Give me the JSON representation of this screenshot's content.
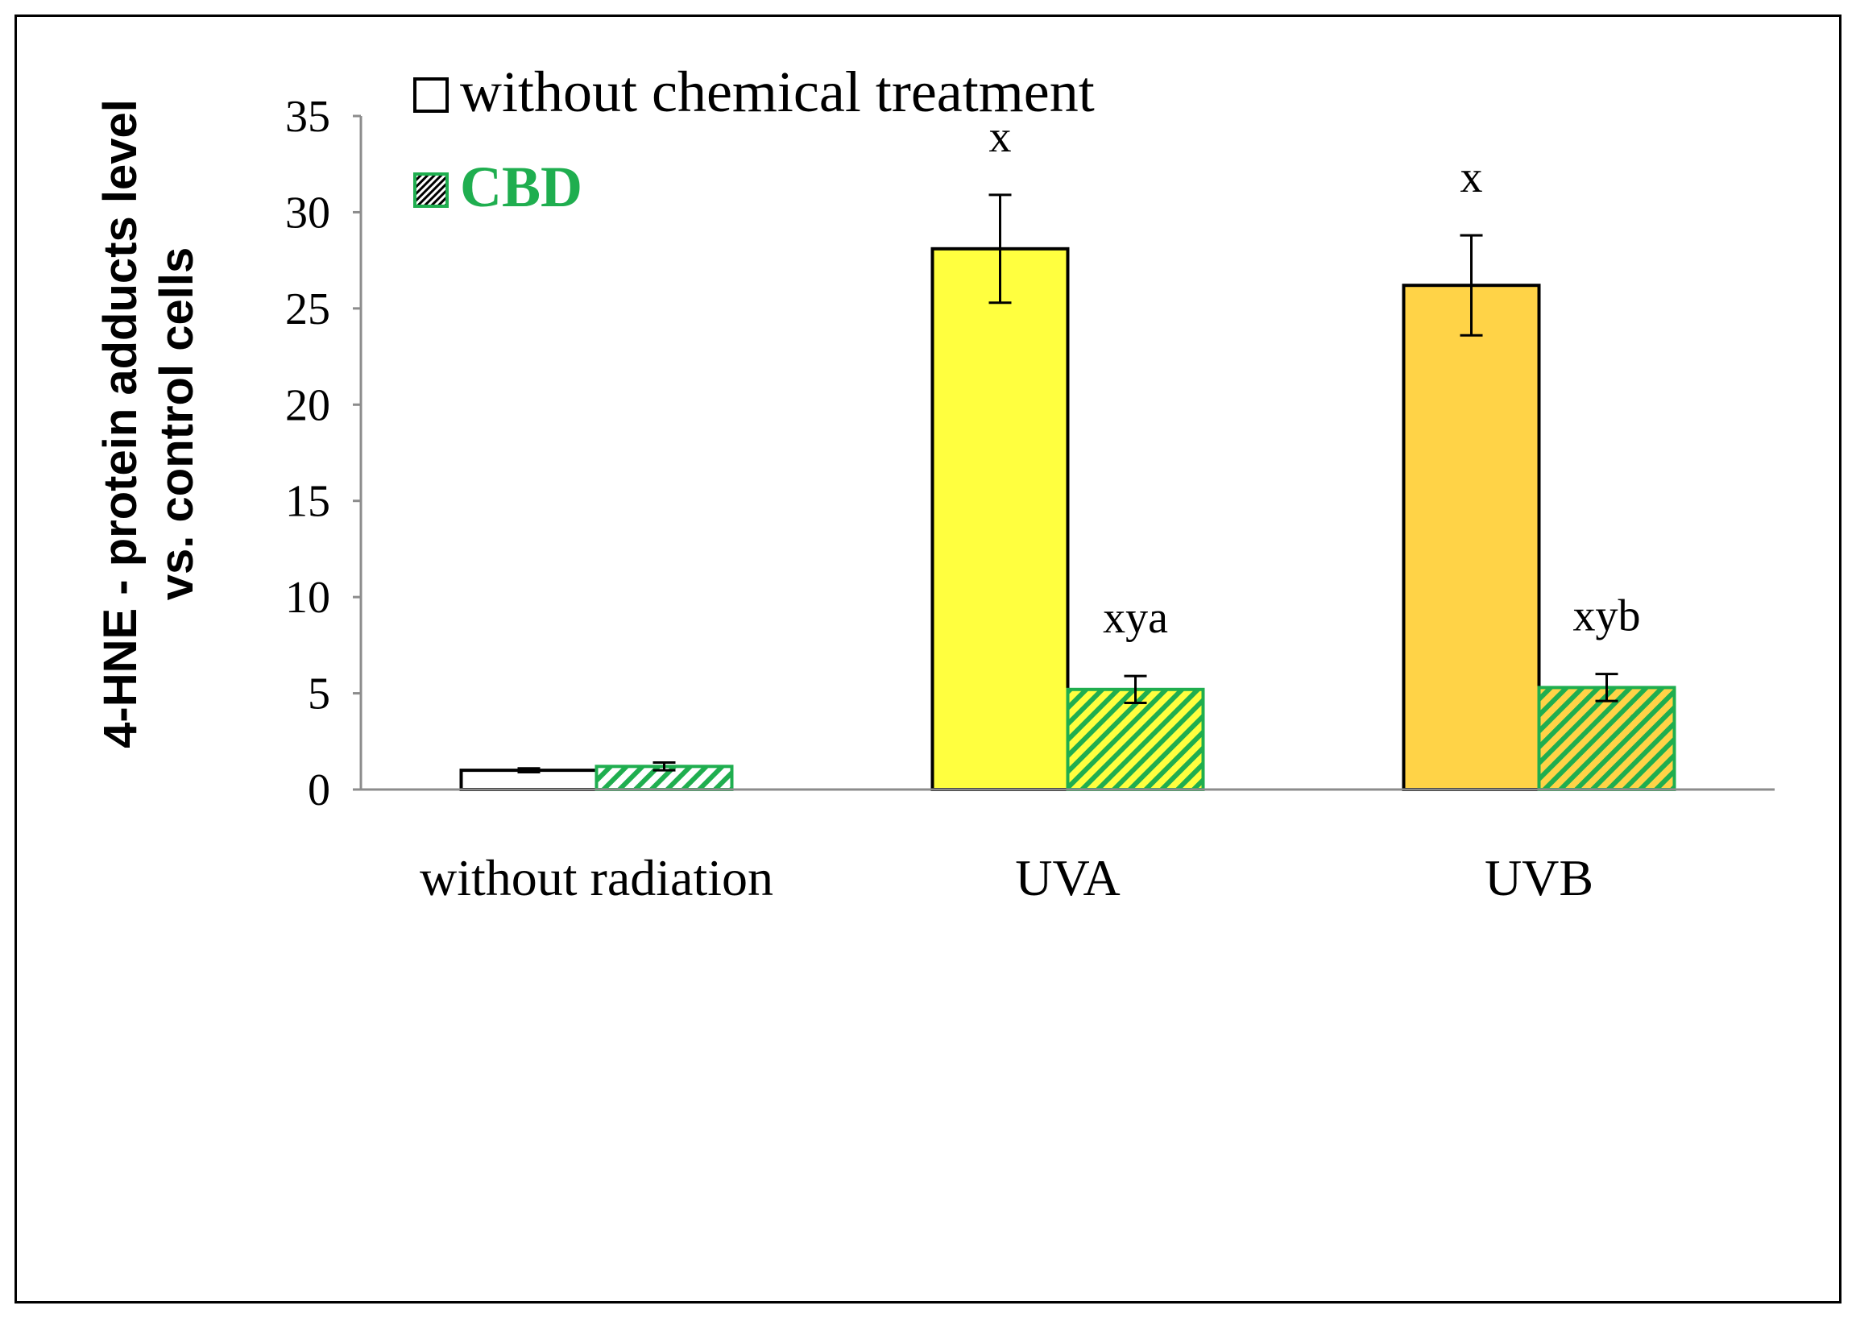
{
  "chart_data": {
    "type": "bar",
    "title": "",
    "xlabel": "",
    "ylabel_lines": [
      "4-HNE - protein adducts level",
      "vs. control cells"
    ],
    "categories": [
      "without radiation",
      "UVA",
      "UVB"
    ],
    "ylim": [
      0,
      35
    ],
    "yticks": [
      0,
      5,
      10,
      15,
      20,
      25,
      30,
      35
    ],
    "grid": false,
    "legend_position": "top-left",
    "series": [
      {
        "name": "without chemical treatment",
        "values": [
          1.0,
          28.1,
          26.2
        ],
        "errors": [
          0.1,
          2.8,
          2.6
        ],
        "fill_colors": [
          "#ffffff",
          "#ffff3f",
          "#ffd347"
        ],
        "edge_color": "#000000",
        "hatched": false,
        "annotations": [
          "",
          "x",
          "x"
        ]
      },
      {
        "name": "CBD",
        "values": [
          1.2,
          5.2,
          5.3
        ],
        "errors": [
          0.2,
          0.7,
          0.7
        ],
        "fill_colors": [
          "#ffffff",
          "#ffff3f",
          "#ffd347"
        ],
        "edge_color": "#1fae4f",
        "hatched": true,
        "annotations": [
          "",
          "xya",
          "xyb"
        ]
      }
    ],
    "colors": {
      "axis": "#8c8c8c",
      "cbd_green": "#1fae4f",
      "text": "#000000"
    }
  }
}
